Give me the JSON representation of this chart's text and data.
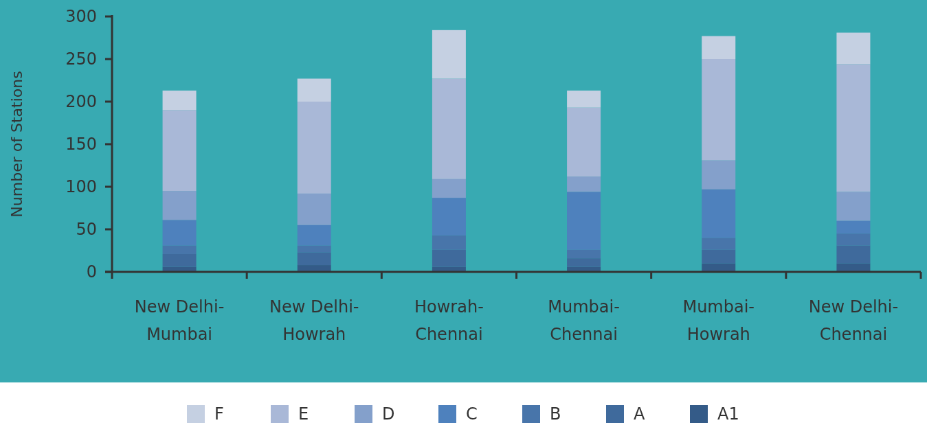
{
  "chart_data": {
    "type": "bar",
    "stacked": true,
    "ylabel": "Number of Stations",
    "categories": [
      "New Delhi-Mumbai",
      "New Delhi-Howrah",
      "Howrah-Chennai",
      "Mumbai-Chennai",
      "Mumbai-Howrah",
      "New Delhi-Chennai"
    ],
    "series": [
      {
        "name": "A1",
        "color": "#345b88",
        "values": [
          6,
          8,
          6,
          6,
          10,
          10
        ]
      },
      {
        "name": "A",
        "color": "#3f6a9c",
        "values": [
          15,
          15,
          20,
          10,
          16,
          21
        ]
      },
      {
        "name": "B",
        "color": "#4875aa",
        "values": [
          10,
          8,
          17,
          10,
          14,
          14
        ]
      },
      {
        "name": "C",
        "color": "#4e81bd",
        "values": [
          30,
          24,
          44,
          68,
          57,
          15
        ]
      },
      {
        "name": "D",
        "color": "#84a0cb",
        "values": [
          34,
          37,
          22,
          18,
          34,
          34
        ]
      },
      {
        "name": "E",
        "color": "#a9b8d7",
        "values": [
          95,
          108,
          118,
          81,
          119,
          150
        ]
      },
      {
        "name": "F",
        "color": "#c5d0e2",
        "values": [
          23,
          27,
          57,
          20,
          27,
          37
        ]
      }
    ],
    "ylim": [
      0,
      300
    ],
    "yticks": [
      0,
      50,
      100,
      150,
      200,
      250,
      300
    ],
    "grid": false,
    "legend": "bottom"
  }
}
